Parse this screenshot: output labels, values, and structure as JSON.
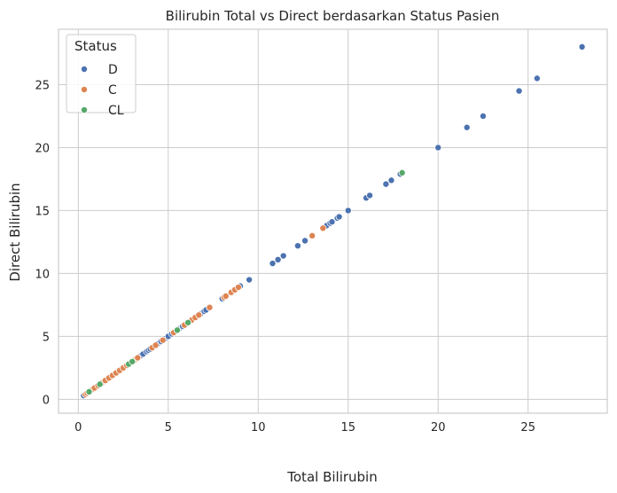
{
  "chart_data": {
    "type": "scatter",
    "title": "Bilirubin Total vs Direct berdasarkan Status Pasien",
    "xlabel": "Total Bilirubin",
    "ylabel": "Direct Bilirubin",
    "xlim": [
      -1.1,
      29.4
    ],
    "ylim": [
      -1.1,
      29.4
    ],
    "xticks": [
      0,
      5,
      10,
      15,
      20,
      25
    ],
    "yticks": [
      0,
      5,
      10,
      15,
      20,
      25
    ],
    "grid": true,
    "legend": {
      "title": "Status",
      "placement": "top-left"
    },
    "series": [
      {
        "name": "D",
        "color": "#4c72b0",
        "x": [
          0.3,
          0.4,
          0.5,
          0.6,
          0.7,
          0.8,
          1.0,
          1.2,
          1.4,
          1.6,
          1.8,
          2.0,
          2.2,
          2.4,
          2.6,
          2.8,
          3.0,
          3.2,
          3.4,
          3.5,
          3.6,
          3.8,
          3.9,
          4.0,
          4.2,
          4.4,
          4.6,
          4.8,
          5.0,
          5.2,
          5.4,
          5.6,
          5.8,
          6.0,
          6.2,
          6.4,
          6.6,
          6.8,
          7.0,
          7.1,
          7.3,
          8.0,
          8.6,
          9.0,
          9.5,
          10.8,
          11.1,
          11.4,
          12.2,
          12.6,
          13.6,
          13.8,
          14.0,
          14.1,
          14.4,
          14.5,
          15.0,
          16.0,
          16.2,
          17.1,
          17.4,
          17.9,
          20.0,
          21.6,
          22.5,
          24.5,
          25.5,
          28.0
        ],
        "y": [
          0.3,
          0.4,
          0.5,
          0.6,
          0.7,
          0.8,
          1.0,
          1.2,
          1.4,
          1.6,
          1.8,
          2.0,
          2.2,
          2.4,
          2.6,
          2.8,
          3.0,
          3.2,
          3.4,
          3.5,
          3.6,
          3.8,
          3.9,
          4.0,
          4.2,
          4.4,
          4.6,
          4.8,
          5.0,
          5.2,
          5.4,
          5.6,
          5.8,
          6.0,
          6.2,
          6.4,
          6.6,
          6.8,
          7.0,
          7.1,
          7.3,
          8.0,
          8.6,
          9.0,
          9.5,
          10.8,
          11.1,
          11.4,
          12.2,
          12.6,
          13.6,
          13.8,
          14.0,
          14.1,
          14.4,
          14.5,
          15.0,
          16.0,
          16.2,
          17.1,
          17.4,
          17.9,
          20.0,
          21.6,
          22.5,
          24.5,
          25.5,
          28.0
        ]
      },
      {
        "name": "C",
        "color": "#dd8452",
        "x": [
          0.4,
          0.5,
          0.6,
          0.7,
          0.8,
          0.9,
          1.1,
          1.3,
          1.5,
          1.7,
          1.9,
          2.1,
          2.3,
          2.5,
          2.7,
          2.9,
          3.1,
          3.3,
          4.1,
          4.3,
          4.7,
          5.3,
          5.5,
          5.9,
          6.3,
          6.5,
          6.7,
          7.3,
          8.1,
          8.2,
          8.5,
          8.7,
          8.9,
          13.0,
          13.6
        ],
        "y": [
          0.4,
          0.5,
          0.6,
          0.7,
          0.8,
          0.9,
          1.1,
          1.3,
          1.5,
          1.7,
          1.9,
          2.1,
          2.3,
          2.5,
          2.7,
          2.9,
          3.1,
          3.3,
          4.1,
          4.3,
          4.7,
          5.3,
          5.5,
          5.9,
          6.3,
          6.5,
          6.7,
          7.3,
          8.1,
          8.2,
          8.5,
          8.7,
          8.9,
          13.0,
          13.6
        ]
      },
      {
        "name": "CL",
        "color": "#55a868",
        "x": [
          0.6,
          1.2,
          2.8,
          3.0,
          5.5,
          6.1,
          18.0
        ],
        "y": [
          0.6,
          1.2,
          2.8,
          3.0,
          5.5,
          6.1,
          18.0
        ]
      }
    ]
  }
}
